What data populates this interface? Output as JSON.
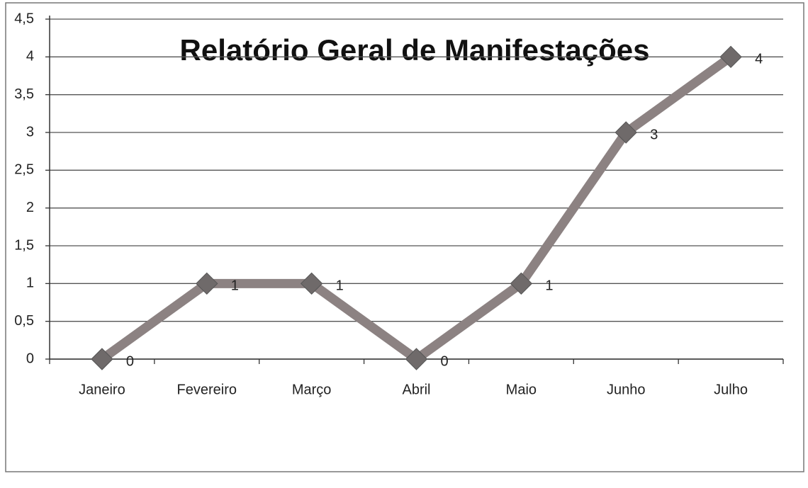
{
  "chart_data": {
    "type": "line",
    "title": "Relatório Geral de Manifestações",
    "categories": [
      "Janeiro",
      "Fevereiro",
      "Março",
      "Abril",
      "Maio",
      "Junho",
      "Julho"
    ],
    "values": [
      0,
      1,
      1,
      0,
      1,
      3,
      4
    ],
    "color": "#8c8282",
    "marker_color": "#6f6a6a",
    "ylim": [
      0,
      4.5
    ],
    "yticks": [
      0,
      {
        "value": 0.5,
        "label": "0,5"
      },
      1,
      {
        "value": 1.5,
        "label": "1,5"
      },
      2,
      {
        "value": 2.5,
        "label": "2,5"
      },
      3,
      {
        "value": 3.5,
        "label": "3,5"
      },
      4,
      {
        "value": 4.5,
        "label": "4,5"
      }
    ],
    "grid": true
  }
}
